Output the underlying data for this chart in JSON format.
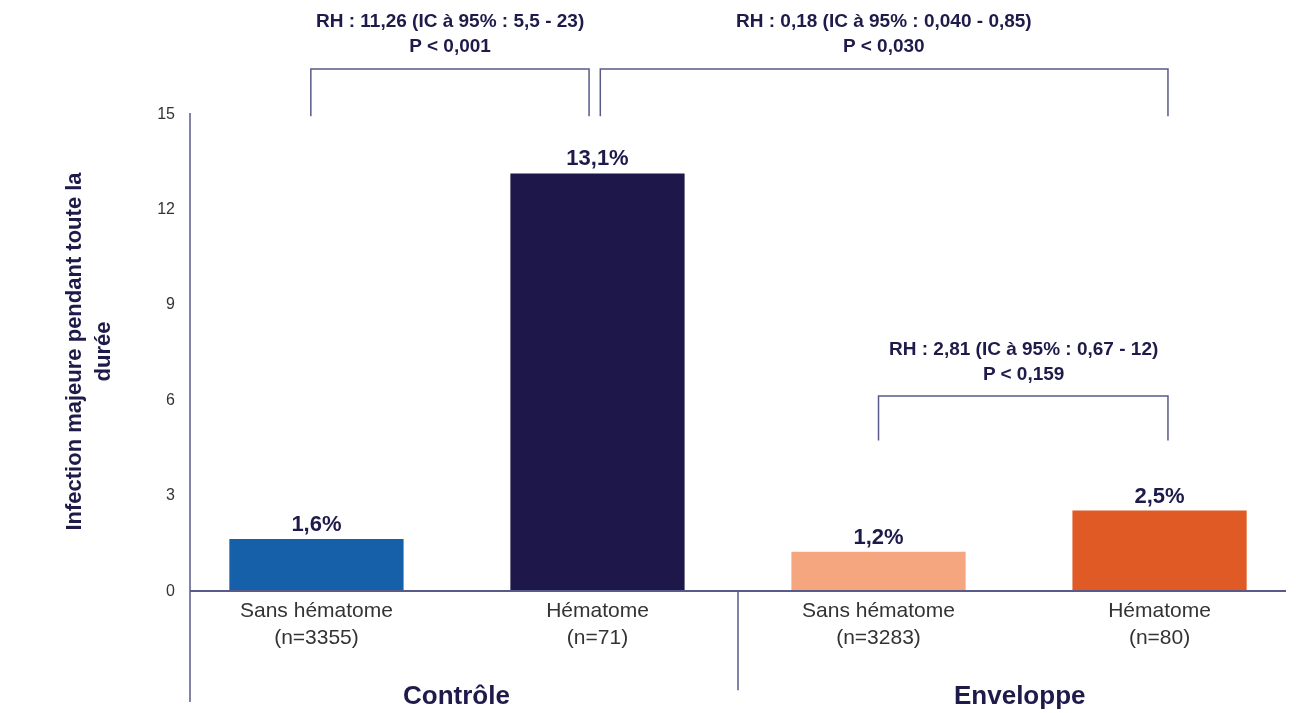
{
  "chart_data": {
    "type": "bar",
    "categories": [
      "Sans hématome (n=3355)",
      "Hématome (n=71)",
      "Sans hématome (n=3283)",
      "Hématome (n=80)"
    ],
    "values": [
      1.6,
      13.1,
      1.2,
      2.5
    ],
    "colors": [
      "#1560a8",
      "#1e174a",
      "#f5a67f",
      "#e05a26"
    ],
    "value_labels": [
      "1,6%",
      "13,1%",
      "1,2%",
      "2,5%"
    ],
    "ylabel": "Infection majeure pendant toute la durée",
    "ylim": [
      0,
      15
    ],
    "yticks": [
      0,
      3,
      6,
      9,
      12,
      15
    ],
    "grid": false,
    "annotations": [
      "RH : 11,26 (IC à 95% : 5,5 - 23)\nP < 0,001",
      "RH : 0,18 (IC à 95% : 0,040 - 0,85)\nP < 0,030",
      "RH : 2,81 (IC à 95% : 0,67 - 12)\nP < 0,159",
      "Contrôle",
      "Enveloppe"
    ]
  }
}
